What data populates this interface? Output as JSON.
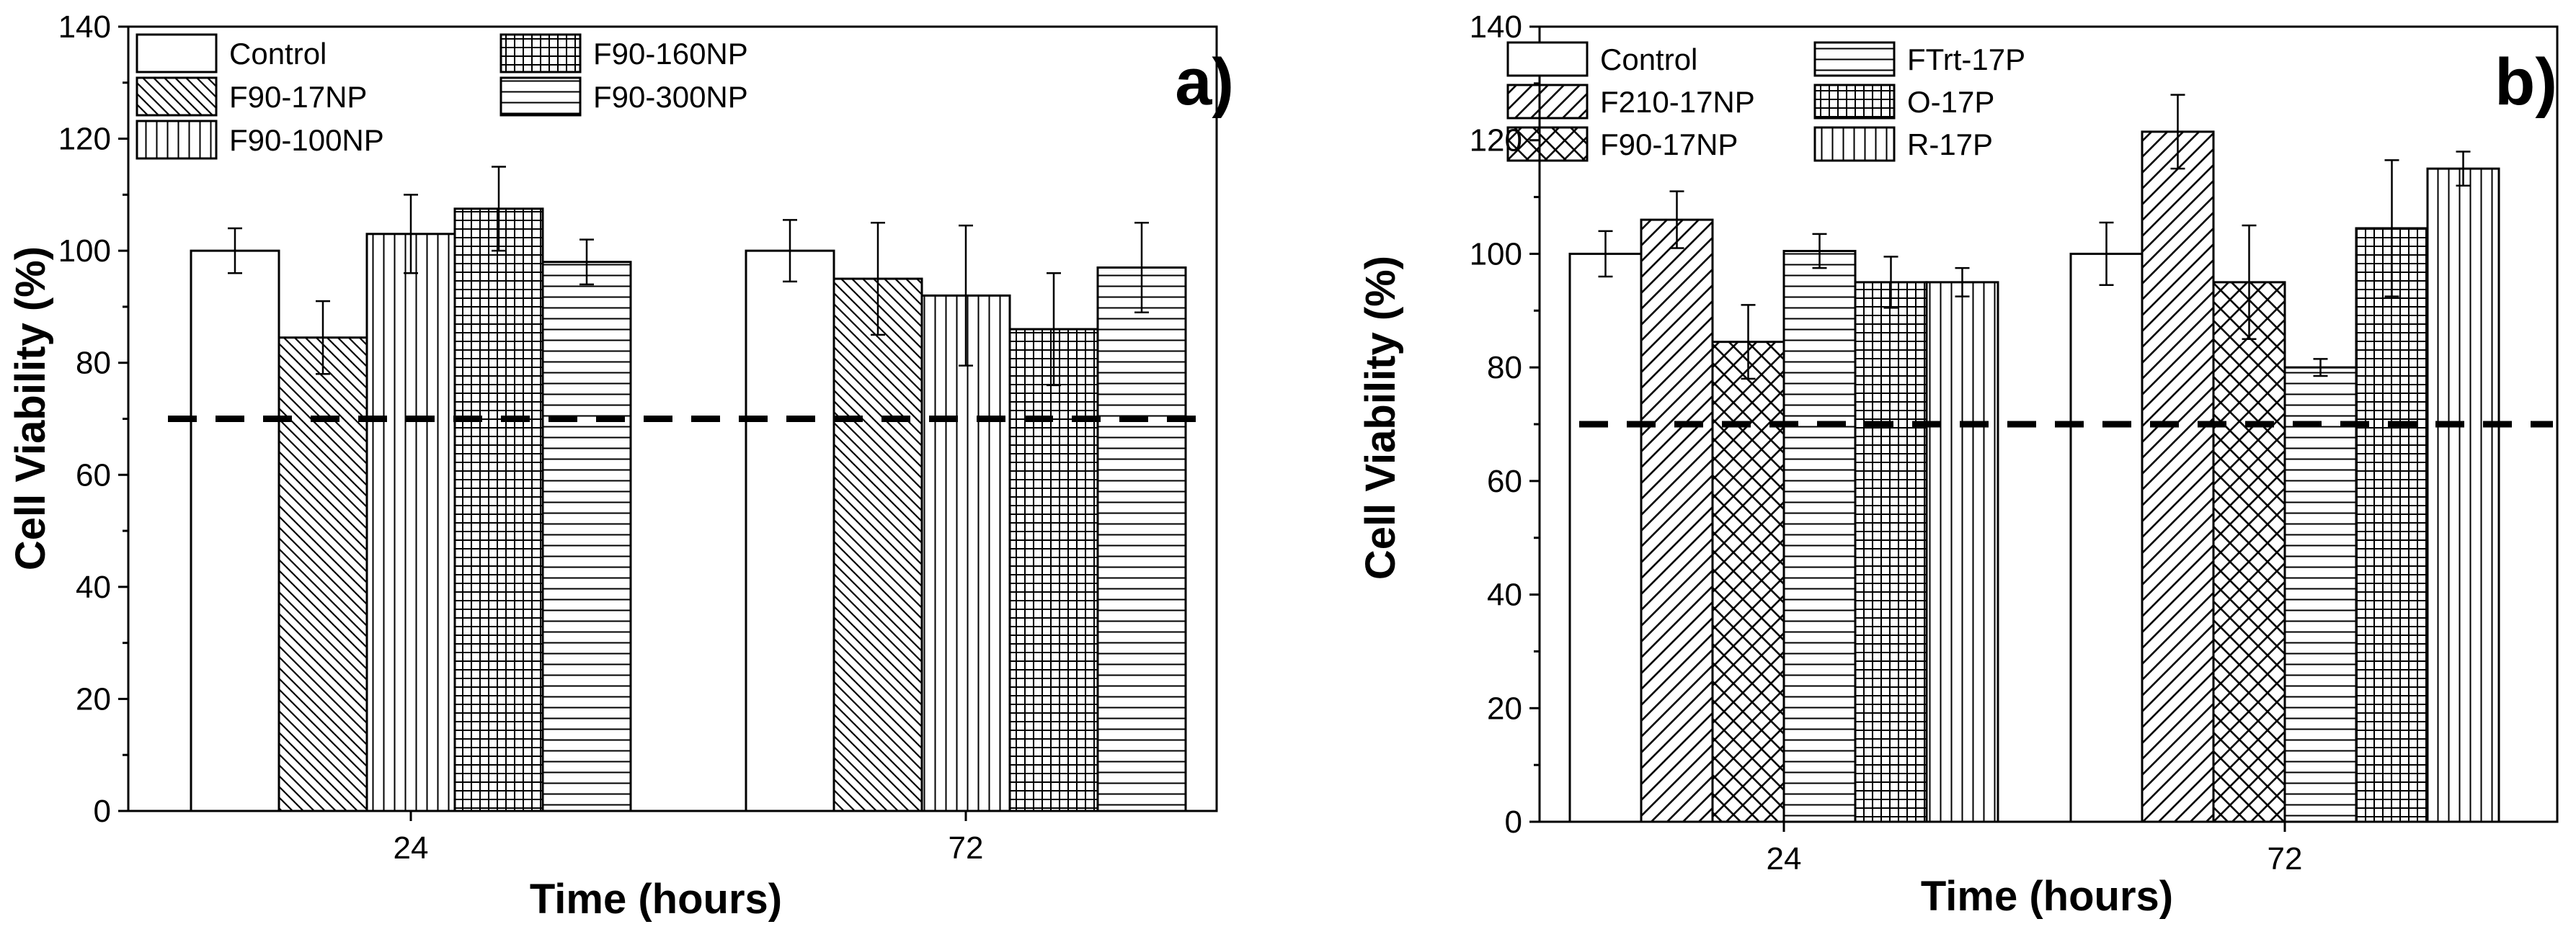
{
  "colors": {
    "ink": "#000000",
    "background": "#ffffff"
  },
  "chart_data": [
    {
      "type": "bar",
      "panel_label": "a)",
      "xlabel": "Time (hours)",
      "ylabel": "Cell Viability (%)",
      "ylim": [
        0,
        140
      ],
      "yticks": [
        0,
        20,
        40,
        60,
        80,
        100,
        120,
        140
      ],
      "categories": [
        "24",
        "72"
      ],
      "threshold": 70,
      "legend_columns": 2,
      "series": [
        {
          "name": "Control",
          "pattern": "none",
          "values": [
            100,
            100
          ],
          "errors": [
            4,
            5.5
          ]
        },
        {
          "name": "F90-17NP",
          "pattern": "diag-back",
          "values": [
            84.5,
            95
          ],
          "errors": [
            6.5,
            10
          ]
        },
        {
          "name": "F90-100NP",
          "pattern": "vertical",
          "values": [
            103,
            92
          ],
          "errors": [
            7,
            12.5
          ]
        },
        {
          "name": "F90-160NP",
          "pattern": "grid",
          "values": [
            107.5,
            86
          ],
          "errors": [
            7.5,
            10
          ]
        },
        {
          "name": "F90-300NP",
          "pattern": "horizontal",
          "values": [
            98,
            97
          ],
          "errors": [
            4,
            8
          ]
        }
      ]
    },
    {
      "type": "bar",
      "panel_label": "b)",
      "xlabel": "Time (hours)",
      "ylabel": "Cell Viability (%)",
      "ylim": [
        0,
        140
      ],
      "yticks": [
        0,
        20,
        40,
        60,
        80,
        100,
        120,
        140
      ],
      "categories": [
        "24",
        "72"
      ],
      "threshold": 70,
      "legend_columns": 2,
      "series": [
        {
          "name": "Control",
          "pattern": "none",
          "values": [
            100,
            100
          ],
          "errors": [
            4,
            5.5
          ]
        },
        {
          "name": "F210-17NP",
          "pattern": "diag-fwd",
          "values": [
            106,
            121.5
          ],
          "errors": [
            5,
            6.5
          ]
        },
        {
          "name": "F90-17NP",
          "pattern": "crosshatch",
          "values": [
            84.5,
            95
          ],
          "errors": [
            6.5,
            10
          ]
        },
        {
          "name": "FTrt-17P",
          "pattern": "horizontal",
          "values": [
            100.5,
            80
          ],
          "errors": [
            3,
            1.5
          ]
        },
        {
          "name": "O-17P",
          "pattern": "grid",
          "values": [
            95,
            104.5
          ],
          "errors": [
            4.5,
            12
          ]
        },
        {
          "name": "R-17P",
          "pattern": "vertical",
          "values": [
            95,
            115
          ],
          "errors": [
            2.5,
            3
          ]
        }
      ]
    }
  ]
}
